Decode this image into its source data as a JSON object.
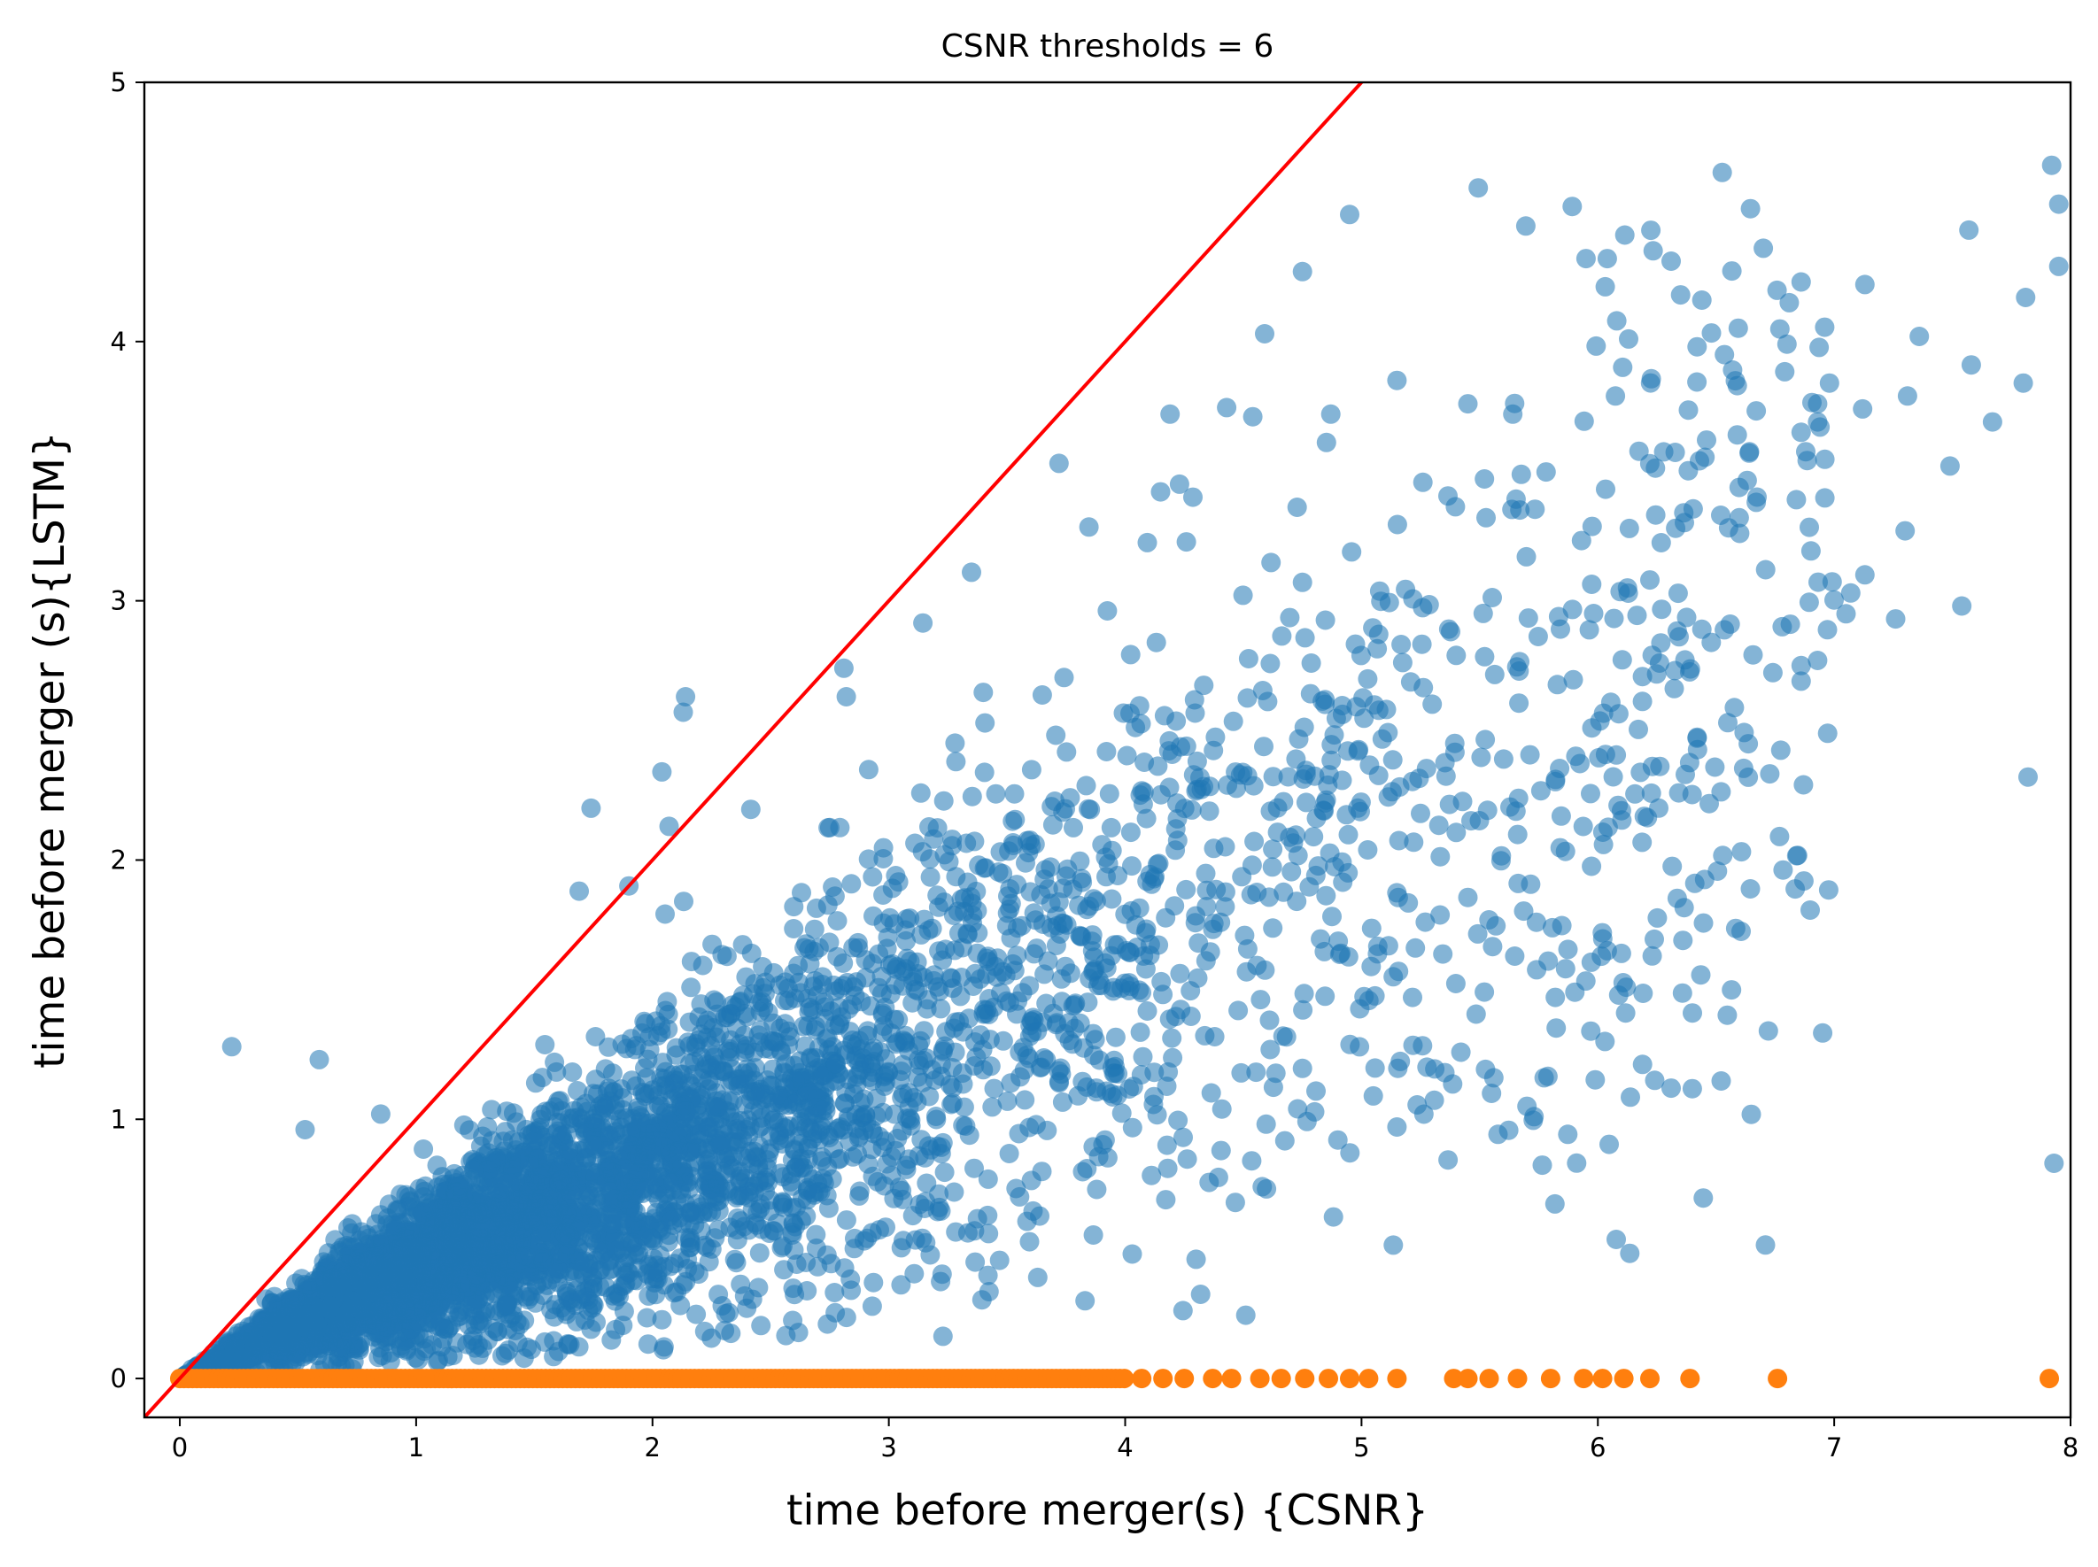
{
  "chart_data": {
    "type": "scatter",
    "title": "CSNR thresholds = 6",
    "xlabel": "time before merger(s) {CSNR}",
    "ylabel": "time before merger (s){LSTM}",
    "xlim": [
      -0.15,
      8.0
    ],
    "ylim": [
      -0.15,
      5.0
    ],
    "xticks": [
      0,
      1,
      2,
      3,
      4,
      5,
      6,
      7,
      8
    ],
    "yticks": [
      0,
      1,
      2,
      3,
      4,
      5
    ],
    "grid": false,
    "legend": "none",
    "reference_line": {
      "x": [
        -0.15,
        5.2
      ],
      "y": [
        -0.15,
        5.2
      ],
      "color": "#ff0000"
    },
    "series": [
      {
        "color": "#1f77b4",
        "opacity": 0.55,
        "approx_count": 5000,
        "points": [
          [
            0.22,
            1.28
          ],
          [
            0.59,
            1.23
          ],
          [
            0.53,
            0.96
          ],
          [
            0.85,
            1.02
          ],
          [
            1.74,
            2.2
          ],
          [
            1.9,
            1.9
          ],
          [
            1.69,
            1.88
          ],
          [
            2.04,
            2.34
          ],
          [
            2.13,
            2.57
          ],
          [
            2.14,
            2.63
          ],
          [
            2.07,
            2.13
          ],
          [
            2.81,
            2.74
          ],
          [
            2.82,
            2.63
          ],
          [
            3.35,
            3.11
          ],
          [
            3.72,
            3.53
          ],
          [
            4.15,
            3.42
          ],
          [
            4.19,
            3.72
          ],
          [
            4.23,
            3.45
          ],
          [
            4.59,
            4.03
          ],
          [
            4.54,
            3.71
          ],
          [
            4.75,
            4.27
          ],
          [
            4.95,
            4.49
          ],
          [
            5.15,
            3.85
          ],
          [
            4.87,
            3.72
          ],
          [
            5.45,
            3.76
          ],
          [
            5.64,
            3.72
          ],
          [
            5.52,
            3.47
          ],
          [
            5.67,
            3.35
          ],
          [
            5.95,
            4.32
          ],
          [
            6.04,
            4.32
          ],
          [
            6.08,
            4.08
          ],
          [
            6.13,
            4.01
          ],
          [
            6.31,
            4.31
          ],
          [
            6.35,
            4.18
          ],
          [
            6.42,
            3.98
          ],
          [
            6.44,
            4.16
          ],
          [
            6.7,
            4.36
          ],
          [
            6.86,
            4.23
          ],
          [
            6.81,
            4.15
          ],
          [
            6.8,
            3.99
          ],
          [
            7.13,
            4.22
          ],
          [
            7.57,
            4.43
          ],
          [
            7.81,
            4.17
          ],
          [
            7.92,
            4.68
          ],
          [
            7.95,
            4.53
          ],
          [
            7.95,
            4.29
          ],
          [
            7.67,
            3.69
          ],
          [
            7.8,
            3.84
          ],
          [
            7.58,
            3.91
          ],
          [
            7.36,
            4.02
          ],
          [
            7.31,
            3.79
          ],
          [
            7.49,
            3.52
          ],
          [
            7.54,
            2.98
          ],
          [
            7.3,
            3.27
          ],
          [
            7.26,
            2.93
          ],
          [
            7.12,
            3.74
          ],
          [
            7.13,
            3.1
          ],
          [
            7.07,
            3.03
          ],
          [
            7.05,
            2.95
          ],
          [
            6.98,
            3.84
          ],
          [
            6.93,
            3.76
          ],
          [
            6.93,
            3.69
          ],
          [
            6.94,
            3.67
          ],
          [
            6.86,
            3.65
          ],
          [
            6.84,
            3.39
          ],
          [
            6.86,
            2.75
          ],
          [
            6.86,
            2.69
          ],
          [
            6.87,
            2.29
          ],
          [
            6.93,
            2.77
          ],
          [
            6.78,
            2.9
          ],
          [
            6.71,
            3.12
          ],
          [
            6.67,
            3.38
          ],
          [
            6.59,
            3.64
          ],
          [
            6.59,
            3.83
          ],
          [
            6.57,
            3.89
          ],
          [
            6.6,
            3.26
          ],
          [
            6.56,
            2.91
          ],
          [
            6.55,
            2.53
          ],
          [
            6.52,
            3.33
          ],
          [
            6.46,
            3.62
          ],
          [
            6.43,
            3.54
          ],
          [
            6.44,
            2.89
          ],
          [
            6.42,
            2.47
          ],
          [
            6.37,
            2.33
          ],
          [
            6.41,
            1.91
          ],
          [
            6.4,
            1.41
          ],
          [
            6.31,
            1.12
          ],
          [
            6.23,
            1.63
          ],
          [
            6.36,
            1.69
          ],
          [
            6.1,
            1.64
          ],
          [
            6.04,
            1.65
          ],
          [
            6.03,
            1.3
          ],
          [
            5.97,
            1.34
          ],
          [
            5.82,
            1.47
          ],
          [
            5.79,
            1.61
          ],
          [
            5.74,
            1.76
          ],
          [
            5.7,
            1.05
          ],
          [
            5.73,
            1.01
          ],
          [
            5.55,
            1.1
          ],
          [
            5.56,
            1.16
          ],
          [
            5.15,
            0.97
          ],
          [
            5.05,
            1.09
          ],
          [
            4.9,
            0.92
          ],
          [
            4.73,
            1.04
          ],
          [
            4.58,
            0.74
          ],
          [
            4.3,
            0.46
          ],
          [
            4.03,
            0.48
          ],
          [
            3.63,
            0.39
          ],
          [
            2.74,
            0.21
          ],
          [
            2.31,
            0.25
          ],
          [
            7.82,
            2.32
          ],
          [
            7.93,
            0.83
          ]
        ],
        "cloud": {
          "x_min": 0.0,
          "x_max": 7.0,
          "median_ratio": 0.42,
          "spread_ratio": 0.14
        }
      },
      {
        "color": "#ff7f0e",
        "opacity": 1.0,
        "y_value": 0,
        "points": [
          [
            5.39,
            0
          ],
          [
            5.45,
            0
          ],
          [
            5.54,
            0
          ],
          [
            5.66,
            0
          ],
          [
            5.8,
            0
          ],
          [
            5.94,
            0
          ],
          [
            6.02,
            0
          ],
          [
            6.11,
            0
          ],
          [
            6.22,
            0
          ],
          [
            6.39,
            0
          ],
          [
            6.76,
            0
          ],
          [
            7.91,
            0
          ],
          [
            5.15,
            0
          ],
          [
            5.03,
            0
          ],
          [
            4.95,
            0
          ],
          [
            4.86,
            0
          ],
          [
            4.76,
            0
          ],
          [
            4.66,
            0
          ],
          [
            4.57,
            0
          ],
          [
            4.45,
            0
          ],
          [
            4.37,
            0
          ],
          [
            4.25,
            0
          ],
          [
            4.16,
            0
          ],
          [
            4.07,
            0
          ]
        ],
        "dense_range": [
          0.0,
          4.0
        ]
      }
    ]
  }
}
